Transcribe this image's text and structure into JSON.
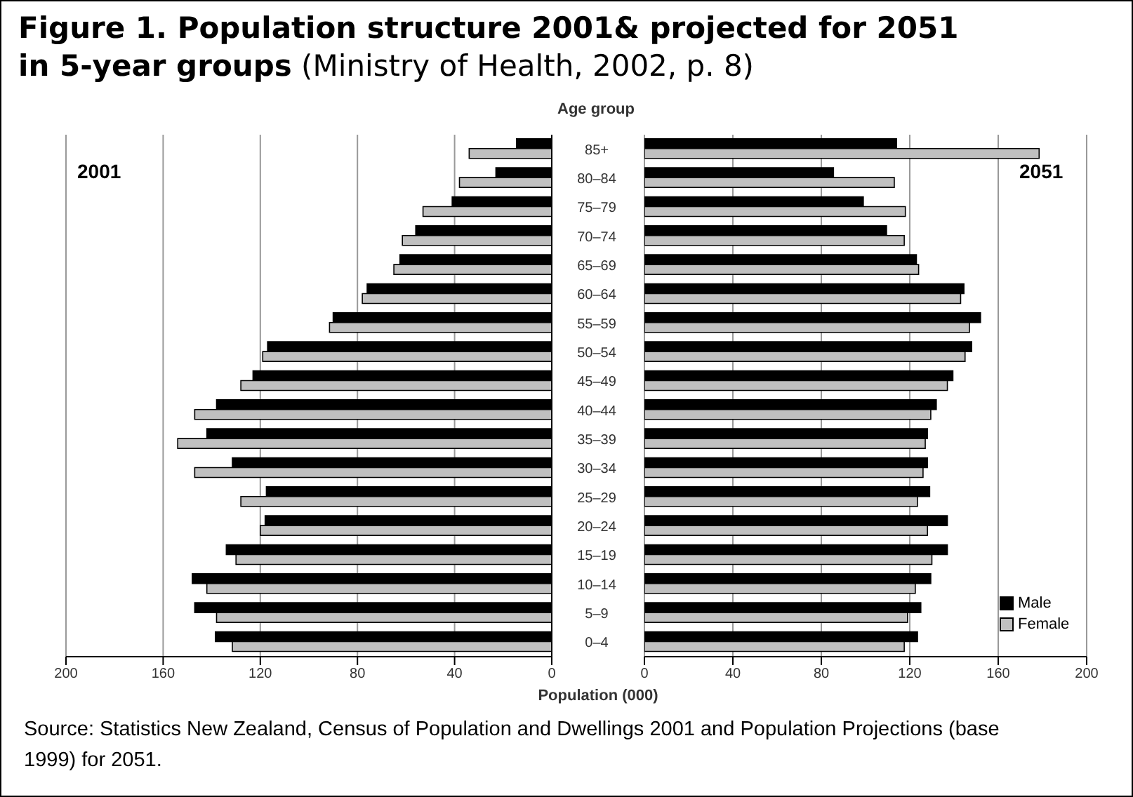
{
  "chart_data": [
    {
      "type": "bar",
      "title": "Figure 1. Population structure 2001& projected for 2051 in 5-year groups",
      "subtitle": "(Ministry of Health, 2002, p. 8)",
      "xlabel": "Population (000)",
      "orientation": "horizontal",
      "categories": [
        "85+",
        "80–84",
        "75–79",
        "70–74",
        "65–69",
        "60–64",
        "55–59",
        "50–54",
        "45–49",
        "40–44",
        "35–39",
        "30–34",
        "25–29",
        "20–24",
        "15–19",
        "10–14",
        "5–9",
        "0–4"
      ],
      "series": [
        {
          "color": "#000000",
          "values": [
            14.5,
            23,
            41,
            56,
            62.5,
            76,
            90,
            117,
            123,
            138,
            142,
            131.5,
            117.5,
            118,
            134,
            148,
            147,
            138.5
          ]
        },
        {
          "color": "#c0c0c0",
          "values": [
            34,
            38,
            53,
            61.5,
            65,
            78,
            91.5,
            119,
            128,
            147,
            154,
            147,
            128,
            120,
            130,
            142,
            138,
            131.5
          ]
        }
      ],
      "xlim": [
        200,
        0
      ],
      "xticks": [
        200,
        160,
        120,
        80,
        40,
        0
      ],
      "grid": "x",
      "ylabel": "Age group",
      "annotations": [
        "2001",
        "Source: Statistics New Zealand, Census of Population and Dwellings 2001 and Population Projections (base 1999) for 2051."
      ]
    },
    {
      "type": "bar",
      "orientation": "horizontal",
      "categories": [
        null,
        null,
        null,
        null,
        null,
        null,
        null,
        null,
        null,
        null,
        null,
        null,
        null,
        null,
        null,
        null,
        null,
        null
      ],
      "tick_labels": "x",
      "series": [
        {
          "name": "Male",
          "color": "#000000",
          "values": [
            114,
            85.5,
            99,
            109.5,
            123,
            144.5,
            152,
            148,
            139.5,
            132,
            128,
            128,
            129,
            137,
            137,
            129.5,
            125,
            123.5
          ]
        },
        {
          "name": "Female",
          "color": "#c0c0c0",
          "values": [
            178.5,
            113,
            118,
            117.5,
            124,
            143,
            147,
            145,
            137,
            129.5,
            127,
            126,
            123.5,
            128,
            130,
            122.5,
            119,
            117.5
          ]
        }
      ],
      "xlim": [
        0,
        200
      ],
      "xticks": [
        0,
        40,
        80,
        120,
        160,
        200
      ],
      "grid": "x",
      "legend": "bottom right",
      "annotations": [
        "2051"
      ]
    }
  ]
}
